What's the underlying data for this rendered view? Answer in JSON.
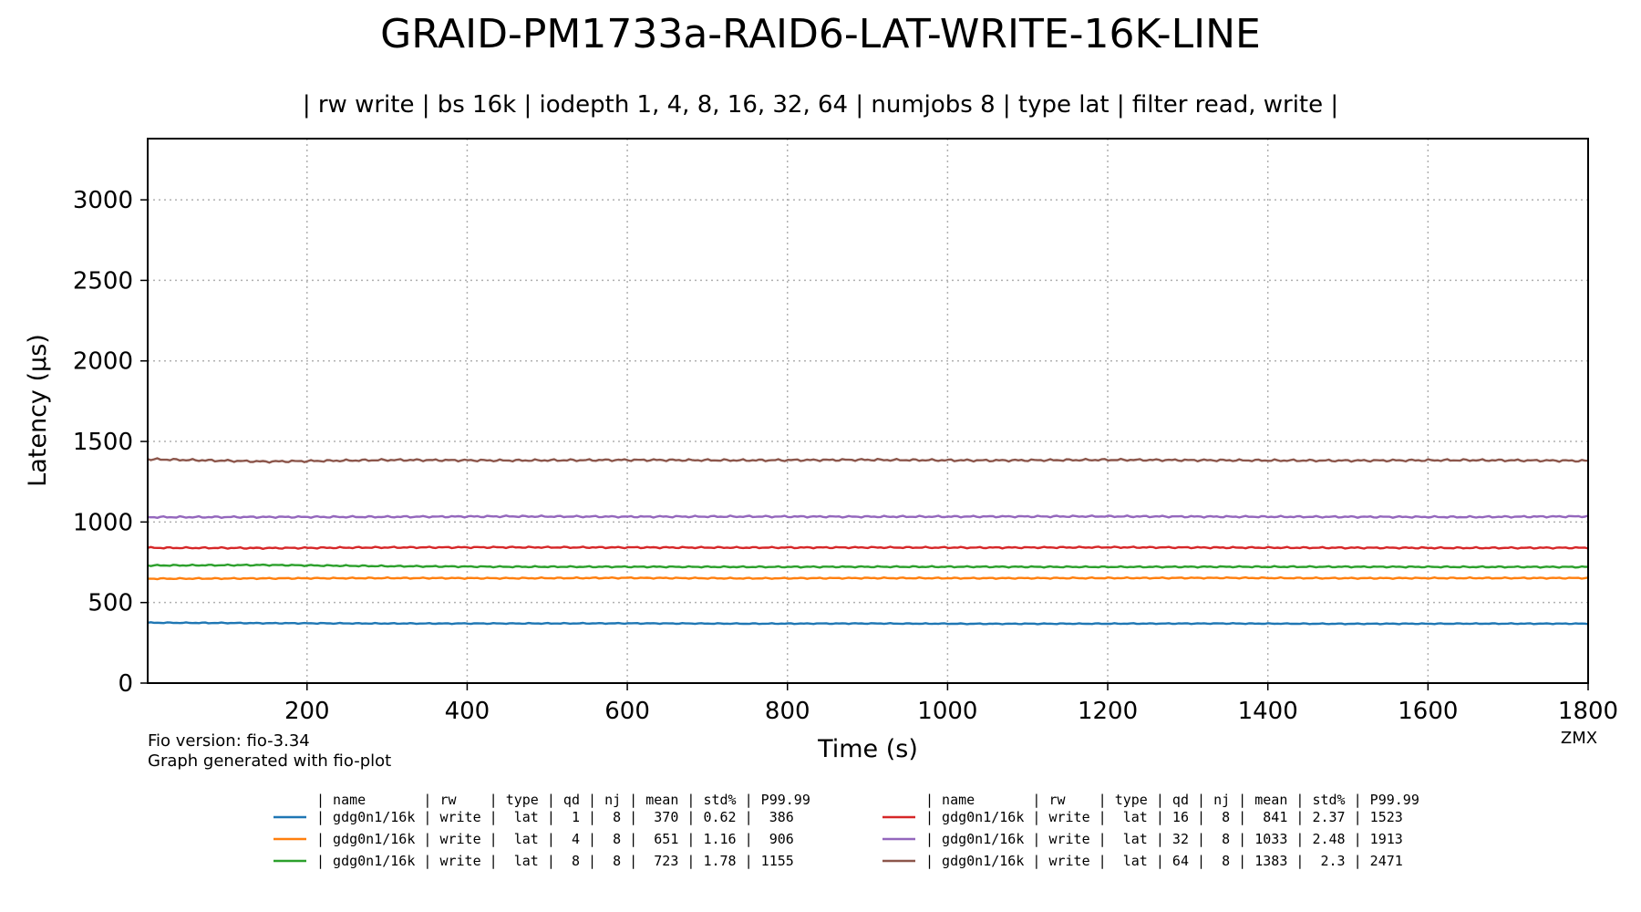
{
  "chart_data": {
    "type": "line",
    "title": "GRAID-PM1733a-RAID6-LAT-WRITE-16K-LINE",
    "subtitle": "| rw write | bs 16k | iodepth 1, 4, 8, 16, 32, 64 | numjobs 8 | type lat | filter read, write |",
    "xlabel": "Time (s)",
    "ylabel": "Latency (µs)",
    "xlim": [
      1,
      1800
    ],
    "ylim": [
      0,
      3380
    ],
    "xticks": [
      200,
      400,
      600,
      800,
      1000,
      1200,
      1400,
      1600,
      1800
    ],
    "xtick_labels": [
      "200",
      "400",
      "600",
      "800",
      "1000",
      "1200",
      "1400",
      "1600",
      "1800"
    ],
    "yticks": [
      0,
      500,
      1000,
      1500,
      2000,
      2500,
      3000
    ],
    "ytick_labels": [
      "0",
      "500",
      "1000",
      "1500",
      "2000",
      "2500",
      "3000"
    ],
    "grid": true,
    "legend_position": "bottom",
    "x": [
      1,
      150,
      300,
      450,
      600,
      750,
      900,
      1050,
      1200,
      1350,
      1500,
      1650,
      1800
    ],
    "series": [
      {
        "name": "gdg0n1/16k",
        "color": "#1f77b4",
        "values": [
          375,
          372,
          370,
          370,
          371,
          369,
          370,
          368,
          369,
          370,
          368,
          369,
          369
        ]
      },
      {
        "name": "gdg0n1/16k",
        "color": "#ff7f0e",
        "values": [
          648,
          650,
          652,
          651,
          653,
          650,
          652,
          651,
          652,
          653,
          651,
          652,
          652
        ]
      },
      {
        "name": "gdg0n1/16k",
        "color": "#2ca02c",
        "values": [
          730,
          733,
          726,
          722,
          722,
          721,
          722,
          722,
          721,
          722,
          722,
          721,
          721
        ]
      },
      {
        "name": "gdg0n1/16k",
        "color": "#d62728",
        "values": [
          840,
          838,
          842,
          843,
          842,
          841,
          842,
          841,
          843,
          841,
          840,
          839,
          840
        ]
      },
      {
        "name": "gdg0n1/16k",
        "color": "#9467bd",
        "values": [
          1030,
          1031,
          1032,
          1035,
          1033,
          1034,
          1033,
          1034,
          1035,
          1033,
          1032,
          1031,
          1035
        ]
      },
      {
        "name": "gdg0n1/16k",
        "color": "#8c564b",
        "values": [
          1390,
          1375,
          1385,
          1382,
          1385,
          1383,
          1386,
          1382,
          1386,
          1383,
          1381,
          1384,
          1380
        ]
      }
    ],
    "table": {
      "header": "| name       | rw    | type | qd | nj | mean | std% | P99.99",
      "rows": [
        "| gdg0n1/16k | write |  lat |  1 |  8 |  370 | 0.62 |  386",
        "| gdg0n1/16k | write |  lat |  4 |  8 |  651 | 1.16 |  906",
        "| gdg0n1/16k | write |  lat |  8 |  8 |  723 | 1.78 | 1155",
        "| gdg0n1/16k | write |  lat | 16 |  8 |  841 | 2.37 | 1523",
        "| gdg0n1/16k | write |  lat | 32 |  8 | 1033 | 2.48 | 1913",
        "| gdg0n1/16k | write |  lat | 64 |  8 | 1383 |  2.3 | 2471"
      ]
    }
  },
  "notes": {
    "fio_version": "Fio version: fio-3.34",
    "generator": "Graph generated with fio-plot",
    "author": "ZMX"
  }
}
